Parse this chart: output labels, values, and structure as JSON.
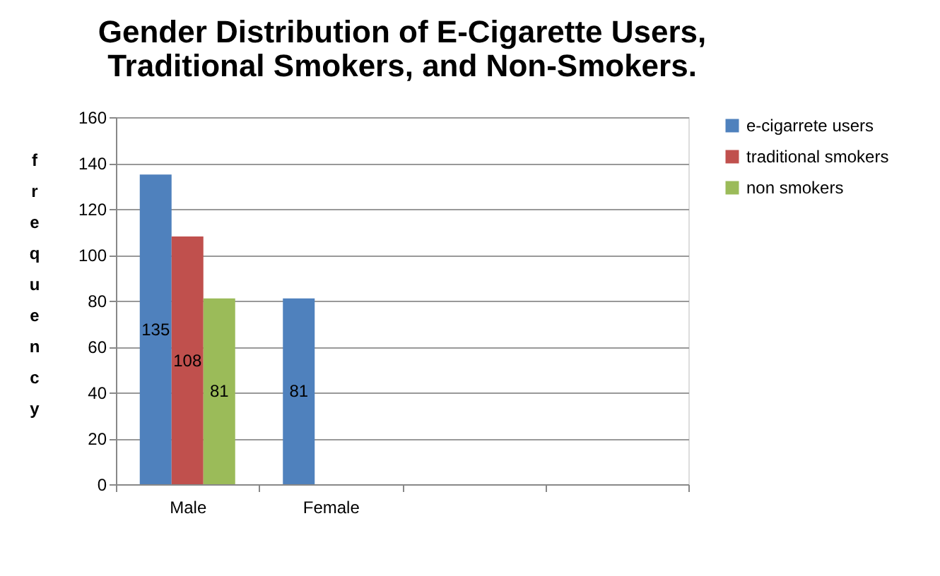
{
  "chart_data": {
    "type": "bar",
    "title": "Gender Distribution of E-Cigarette Users, Traditional Smokers, and Non-Smokers.",
    "ylabel": "frequency",
    "categories": [
      "Male",
      "Female",
      null,
      null
    ],
    "series": [
      {
        "name": "e-cigarrete users",
        "color": "#4f81bd",
        "values": [
          135,
          81,
          null,
          null
        ]
      },
      {
        "name": "traditional smokers",
        "color": "#c0504d",
        "values": [
          108,
          null,
          null,
          null
        ]
      },
      {
        "name": "non smokers",
        "color": "#9bbb59",
        "values": [
          81,
          null,
          null,
          null
        ]
      }
    ],
    "ylim": [
      0,
      160
    ],
    "yticks": [
      0,
      20,
      40,
      60,
      80,
      100,
      120,
      140,
      160
    ],
    "grid": "y",
    "legend": "right",
    "data_labels": true
  }
}
